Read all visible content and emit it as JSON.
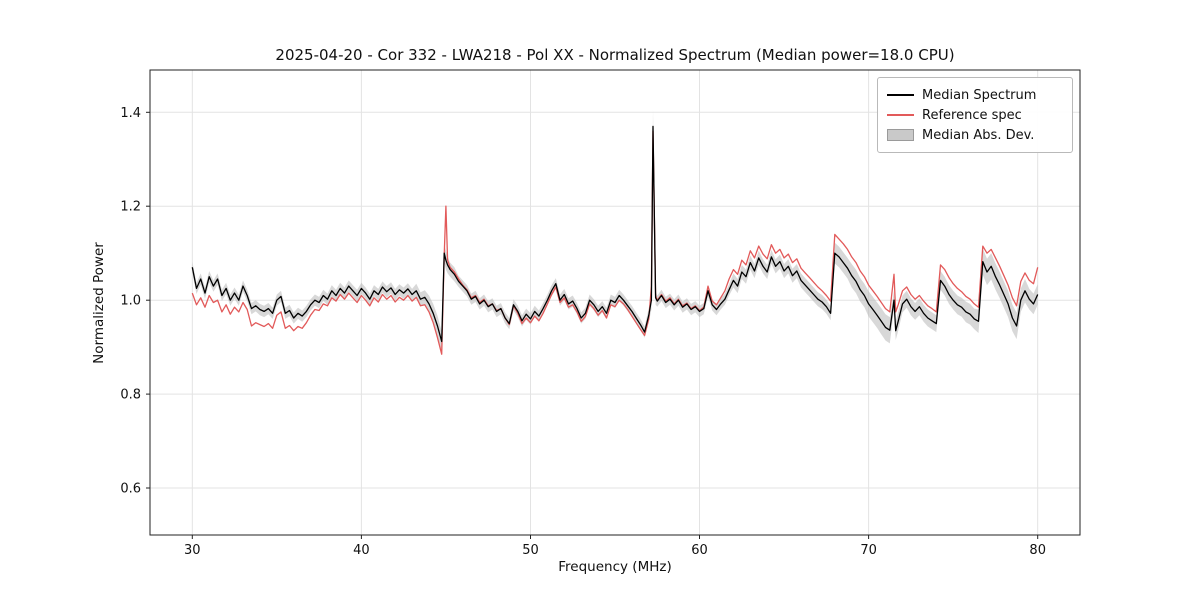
{
  "chart_data": {
    "type": "line",
    "title": "2025-04-20 - Cor 332 - LWA218 - Pol XX - Normalized Spectrum (Median power=18.0 CPU)",
    "xlabel": "Frequency (MHz)",
    "ylabel": "Normalized Power",
    "xlim": [
      27.5,
      82.5
    ],
    "ylim": [
      0.5,
      1.49
    ],
    "xticks": [
      30,
      40,
      50,
      60,
      70,
      80
    ],
    "yticks": [
      0.6,
      0.8,
      1.0,
      1.2,
      1.4
    ],
    "grid": true,
    "colors": {
      "median": "#000000",
      "reference": "#e25a5a",
      "band": "#b8b8b8",
      "grid": "#e3e3e3",
      "spine": "#222222"
    },
    "legend": {
      "position": "upper right",
      "entries": [
        {
          "label": "Median Spectrum",
          "color": "#000000",
          "type": "line"
        },
        {
          "label": "Reference spec",
          "color": "#e25a5a",
          "type": "line"
        },
        {
          "label": "Median Abs. Dev.",
          "color": "#c9c9c9",
          "type": "patch"
        }
      ]
    },
    "columns": [
      "frequency_mhz",
      "median_spectrum",
      "reference_spec",
      "mad_halfwidth"
    ],
    "points": [
      [
        30.0,
        1.07,
        1.015,
        0.012
      ],
      [
        30.25,
        1.025,
        0.99,
        0.012
      ],
      [
        30.5,
        1.045,
        1.005,
        0.012
      ],
      [
        30.75,
        1.015,
        0.985,
        0.012
      ],
      [
        31.0,
        1.05,
        1.01,
        0.012
      ],
      [
        31.25,
        1.03,
        0.995,
        0.012
      ],
      [
        31.5,
        1.045,
        1.0,
        0.012
      ],
      [
        31.75,
        1.01,
        0.975,
        0.012
      ],
      [
        32.0,
        1.025,
        0.99,
        0.012
      ],
      [
        32.25,
        1.0,
        0.97,
        0.012
      ],
      [
        32.5,
        1.015,
        0.985,
        0.012
      ],
      [
        32.75,
        1.0,
        0.975,
        0.012
      ],
      [
        33.0,
        1.03,
        0.995,
        0.012
      ],
      [
        33.25,
        1.01,
        0.98,
        0.012
      ],
      [
        33.5,
        0.982,
        0.945,
        0.012
      ],
      [
        33.75,
        0.988,
        0.952,
        0.012
      ],
      [
        34.0,
        0.98,
        0.948,
        0.012
      ],
      [
        34.25,
        0.976,
        0.944,
        0.012
      ],
      [
        34.5,
        0.982,
        0.95,
        0.012
      ],
      [
        34.75,
        0.972,
        0.94,
        0.012
      ],
      [
        35.0,
        1.0,
        0.968,
        0.012
      ],
      [
        35.25,
        1.008,
        0.975,
        0.012
      ],
      [
        35.5,
        0.972,
        0.94,
        0.012
      ],
      [
        35.75,
        0.978,
        0.946,
        0.012
      ],
      [
        36.0,
        0.962,
        0.935,
        0.012
      ],
      [
        36.25,
        0.972,
        0.944,
        0.012
      ],
      [
        36.5,
        0.966,
        0.94,
        0.012
      ],
      [
        36.75,
        0.976,
        0.952,
        0.012
      ],
      [
        37.0,
        0.99,
        0.968,
        0.012
      ],
      [
        37.25,
        1.0,
        0.98,
        0.012
      ],
      [
        37.5,
        0.995,
        0.978,
        0.012
      ],
      [
        37.75,
        1.01,
        0.992,
        0.012
      ],
      [
        38.0,
        1.002,
        0.988,
        0.012
      ],
      [
        38.25,
        1.02,
        1.005,
        0.012
      ],
      [
        38.5,
        1.01,
        0.998,
        0.012
      ],
      [
        38.75,
        1.025,
        1.012,
        0.012
      ],
      [
        39.0,
        1.015,
        1.002,
        0.012
      ],
      [
        39.25,
        1.03,
        1.015,
        0.012
      ],
      [
        39.5,
        1.02,
        1.005,
        0.012
      ],
      [
        39.75,
        1.01,
        0.995,
        0.012
      ],
      [
        40.0,
        1.025,
        1.01,
        0.012
      ],
      [
        40.25,
        1.015,
        1.0,
        0.012
      ],
      [
        40.5,
        1.002,
        0.988,
        0.012
      ],
      [
        40.75,
        1.02,
        1.005,
        0.012
      ],
      [
        41.0,
        1.012,
        0.996,
        0.012
      ],
      [
        41.25,
        1.028,
        1.012,
        0.012
      ],
      [
        41.5,
        1.018,
        1.002,
        0.012
      ],
      [
        41.75,
        1.026,
        1.01,
        0.012
      ],
      [
        42.0,
        1.012,
        0.996,
        0.012
      ],
      [
        42.25,
        1.022,
        1.006,
        0.012
      ],
      [
        42.5,
        1.015,
        1.0,
        0.012
      ],
      [
        42.75,
        1.024,
        1.01,
        0.012
      ],
      [
        43.0,
        1.012,
        0.998,
        0.012
      ],
      [
        43.25,
        1.02,
        1.006,
        0.015
      ],
      [
        43.5,
        1.002,
        0.988,
        0.015
      ],
      [
        43.75,
        1.006,
        0.99,
        0.015
      ],
      [
        44.0,
        0.992,
        0.975,
        0.018
      ],
      [
        44.25,
        0.972,
        0.952,
        0.02
      ],
      [
        44.5,
        0.945,
        0.92,
        0.022
      ],
      [
        44.75,
        0.912,
        0.885,
        0.022
      ],
      [
        44.9,
        1.1,
        1.095,
        0.02
      ],
      [
        45.0,
        1.085,
        1.2,
        0.02
      ],
      [
        45.1,
        1.075,
        1.085,
        0.018
      ],
      [
        45.25,
        1.065,
        1.07,
        0.015
      ],
      [
        45.5,
        1.055,
        1.06,
        0.015
      ],
      [
        45.75,
        1.04,
        1.045,
        0.012
      ],
      [
        46.0,
        1.03,
        1.032,
        0.012
      ],
      [
        46.25,
        1.02,
        1.022,
        0.012
      ],
      [
        46.5,
        1.002,
        1.005,
        0.012
      ],
      [
        46.75,
        1.008,
        1.01,
        0.012
      ],
      [
        47.0,
        0.992,
        0.995,
        0.012
      ],
      [
        47.25,
        1.0,
        1.002,
        0.012
      ],
      [
        47.5,
        0.986,
        0.988,
        0.012
      ],
      [
        47.75,
        0.992,
        0.992,
        0.012
      ],
      [
        48.0,
        0.976,
        0.978,
        0.012
      ],
      [
        48.25,
        0.982,
        0.982,
        0.012
      ],
      [
        48.5,
        0.962,
        0.962,
        0.012
      ],
      [
        48.75,
        0.95,
        0.948,
        0.012
      ],
      [
        49.0,
        0.99,
        0.988,
        0.012
      ],
      [
        49.25,
        0.976,
        0.972,
        0.012
      ],
      [
        49.5,
        0.956,
        0.95,
        0.012
      ],
      [
        49.75,
        0.97,
        0.962,
        0.012
      ],
      [
        50.0,
        0.96,
        0.952,
        0.012
      ],
      [
        50.25,
        0.976,
        0.966,
        0.012
      ],
      [
        50.5,
        0.966,
        0.956,
        0.012
      ],
      [
        50.75,
        0.982,
        0.972,
        0.012
      ],
      [
        51.0,
        1.0,
        0.992,
        0.012
      ],
      [
        51.25,
        1.02,
        1.012,
        0.012
      ],
      [
        51.5,
        1.035,
        1.028,
        0.012
      ],
      [
        51.75,
        1.0,
        0.995,
        0.012
      ],
      [
        52.0,
        1.012,
        1.005,
        0.012
      ],
      [
        52.25,
        0.992,
        0.985,
        0.012
      ],
      [
        52.5,
        0.998,
        0.99,
        0.012
      ],
      [
        52.75,
        0.982,
        0.975,
        0.012
      ],
      [
        53.0,
        0.962,
        0.955,
        0.012
      ],
      [
        53.25,
        0.972,
        0.965,
        0.012
      ],
      [
        53.5,
        1.0,
        0.992,
        0.012
      ],
      [
        53.75,
        0.99,
        0.982,
        0.012
      ],
      [
        54.0,
        0.976,
        0.968,
        0.012
      ],
      [
        54.25,
        0.986,
        0.978,
        0.012
      ],
      [
        54.5,
        0.972,
        0.962,
        0.012
      ],
      [
        54.75,
        1.0,
        0.99,
        0.012
      ],
      [
        55.0,
        0.995,
        0.986,
        0.012
      ],
      [
        55.25,
        1.01,
        1.0,
        0.012
      ],
      [
        55.5,
        1.0,
        0.992,
        0.012
      ],
      [
        55.75,
        0.988,
        0.98,
        0.012
      ],
      [
        56.0,
        0.976,
        0.966,
        0.012
      ],
      [
        56.25,
        0.962,
        0.952,
        0.012
      ],
      [
        56.5,
        0.948,
        0.938,
        0.012
      ],
      [
        56.75,
        0.932,
        0.925,
        0.012
      ],
      [
        57.0,
        0.968,
        0.96,
        0.015
      ],
      [
        57.15,
        1.0,
        1.03,
        0.02
      ],
      [
        57.25,
        1.37,
        1.36,
        0.035
      ],
      [
        57.4,
        1.005,
        1.01,
        0.015
      ],
      [
        57.5,
        0.998,
        1.0,
        0.012
      ],
      [
        57.75,
        1.01,
        1.012,
        0.012
      ],
      [
        58.0,
        0.995,
        0.998,
        0.012
      ],
      [
        58.25,
        1.002,
        1.005,
        0.012
      ],
      [
        58.5,
        0.99,
        0.992,
        0.012
      ],
      [
        58.75,
        1.0,
        1.002,
        0.012
      ],
      [
        59.0,
        0.985,
        0.988,
        0.012
      ],
      [
        59.25,
        0.992,
        0.994,
        0.012
      ],
      [
        59.5,
        0.98,
        0.982,
        0.012
      ],
      [
        59.75,
        0.986,
        0.988,
        0.012
      ],
      [
        60.0,
        0.976,
        0.978,
        0.012
      ],
      [
        60.25,
        0.982,
        0.985,
        0.012
      ],
      [
        60.5,
        1.02,
        1.03,
        0.012
      ],
      [
        60.75,
        0.99,
        0.998,
        0.012
      ],
      [
        61.0,
        0.98,
        0.99,
        0.012
      ],
      [
        61.25,
        0.992,
        1.005,
        0.012
      ],
      [
        61.5,
        1.002,
        1.02,
        0.012
      ],
      [
        61.75,
        1.022,
        1.045,
        0.012
      ],
      [
        62.0,
        1.042,
        1.065,
        0.015
      ],
      [
        62.25,
        1.03,
        1.055,
        0.015
      ],
      [
        62.5,
        1.06,
        1.085,
        0.015
      ],
      [
        62.75,
        1.05,
        1.075,
        0.015
      ],
      [
        63.0,
        1.08,
        1.105,
        0.015
      ],
      [
        63.25,
        1.062,
        1.09,
        0.015
      ],
      [
        63.5,
        1.09,
        1.115,
        0.015
      ],
      [
        63.75,
        1.072,
        1.098,
        0.015
      ],
      [
        64.0,
        1.06,
        1.088,
        0.015
      ],
      [
        64.25,
        1.092,
        1.118,
        0.015
      ],
      [
        64.5,
        1.072,
        1.1,
        0.015
      ],
      [
        64.75,
        1.082,
        1.108,
        0.015
      ],
      [
        65.0,
        1.062,
        1.09,
        0.015
      ],
      [
        65.25,
        1.072,
        1.098,
        0.015
      ],
      [
        65.5,
        1.052,
        1.08,
        0.015
      ],
      [
        65.75,
        1.062,
        1.088,
        0.015
      ],
      [
        66.0,
        1.042,
        1.068,
        0.015
      ],
      [
        66.25,
        1.032,
        1.058,
        0.015
      ],
      [
        66.5,
        1.022,
        1.048,
        0.015
      ],
      [
        66.75,
        1.012,
        1.038,
        0.015
      ],
      [
        67.0,
        1.002,
        1.028,
        0.015
      ],
      [
        67.25,
        0.996,
        1.02,
        0.015
      ],
      [
        67.5,
        0.986,
        1.01,
        0.015
      ],
      [
        67.75,
        0.972,
        0.998,
        0.015
      ],
      [
        68.0,
        1.1,
        1.14,
        0.022
      ],
      [
        68.25,
        1.092,
        1.13,
        0.022
      ],
      [
        68.5,
        1.08,
        1.12,
        0.022
      ],
      [
        68.75,
        1.068,
        1.108,
        0.022
      ],
      [
        69.0,
        1.052,
        1.092,
        0.025
      ],
      [
        69.25,
        1.04,
        1.08,
        0.025
      ],
      [
        69.5,
        1.022,
        1.062,
        0.025
      ],
      [
        69.75,
        1.01,
        1.05,
        0.025
      ],
      [
        70.0,
        0.992,
        1.032,
        0.027
      ],
      [
        70.25,
        0.98,
        1.02,
        0.027
      ],
      [
        70.5,
        0.968,
        1.008,
        0.027
      ],
      [
        70.75,
        0.955,
        0.995,
        0.028
      ],
      [
        71.0,
        0.942,
        0.982,
        0.028
      ],
      [
        71.25,
        0.936,
        0.975,
        0.028
      ],
      [
        71.5,
        1.0,
        1.055,
        0.02
      ],
      [
        71.6,
        0.935,
        0.975,
        0.02
      ],
      [
        71.75,
        0.955,
        0.99,
        0.02
      ],
      [
        72.0,
        0.992,
        1.02,
        0.018
      ],
      [
        72.25,
        1.002,
        1.028,
        0.018
      ],
      [
        72.5,
        0.986,
        1.012,
        0.018
      ],
      [
        72.75,
        0.976,
        1.002,
        0.018
      ],
      [
        73.0,
        0.986,
        1.01,
        0.018
      ],
      [
        73.25,
        0.972,
        0.998,
        0.018
      ],
      [
        73.5,
        0.962,
        0.988,
        0.018
      ],
      [
        73.75,
        0.956,
        0.982,
        0.018
      ],
      [
        74.0,
        0.95,
        0.975,
        0.018
      ],
      [
        74.25,
        1.042,
        1.075,
        0.02
      ],
      [
        74.5,
        1.03,
        1.065,
        0.02
      ],
      [
        74.75,
        1.012,
        1.048,
        0.02
      ],
      [
        75.0,
        1.0,
        1.035,
        0.02
      ],
      [
        75.25,
        0.99,
        1.025,
        0.02
      ],
      [
        75.5,
        0.985,
        1.018,
        0.02
      ],
      [
        75.75,
        0.975,
        1.008,
        0.022
      ],
      [
        76.0,
        0.97,
        1.002,
        0.022
      ],
      [
        76.25,
        0.96,
        0.992,
        0.022
      ],
      [
        76.5,
        0.955,
        0.985,
        0.025
      ],
      [
        76.75,
        1.082,
        1.115,
        0.028
      ],
      [
        77.0,
        1.06,
        1.1,
        0.028
      ],
      [
        77.25,
        1.072,
        1.108,
        0.028
      ],
      [
        77.5,
        1.05,
        1.09,
        0.028
      ],
      [
        77.75,
        1.032,
        1.072,
        0.028
      ],
      [
        78.0,
        1.012,
        1.052,
        0.028
      ],
      [
        78.25,
        0.992,
        1.032,
        0.028
      ],
      [
        78.5,
        0.962,
        1.005,
        0.028
      ],
      [
        78.75,
        0.945,
        0.988,
        0.028
      ],
      [
        79.0,
        1.0,
        1.04,
        0.025
      ],
      [
        79.25,
        1.02,
        1.058,
        0.025
      ],
      [
        79.5,
        1.002,
        1.042,
        0.022
      ],
      [
        79.75,
        0.992,
        1.035,
        0.022
      ],
      [
        80.0,
        1.012,
        1.07,
        0.022
      ]
    ]
  }
}
